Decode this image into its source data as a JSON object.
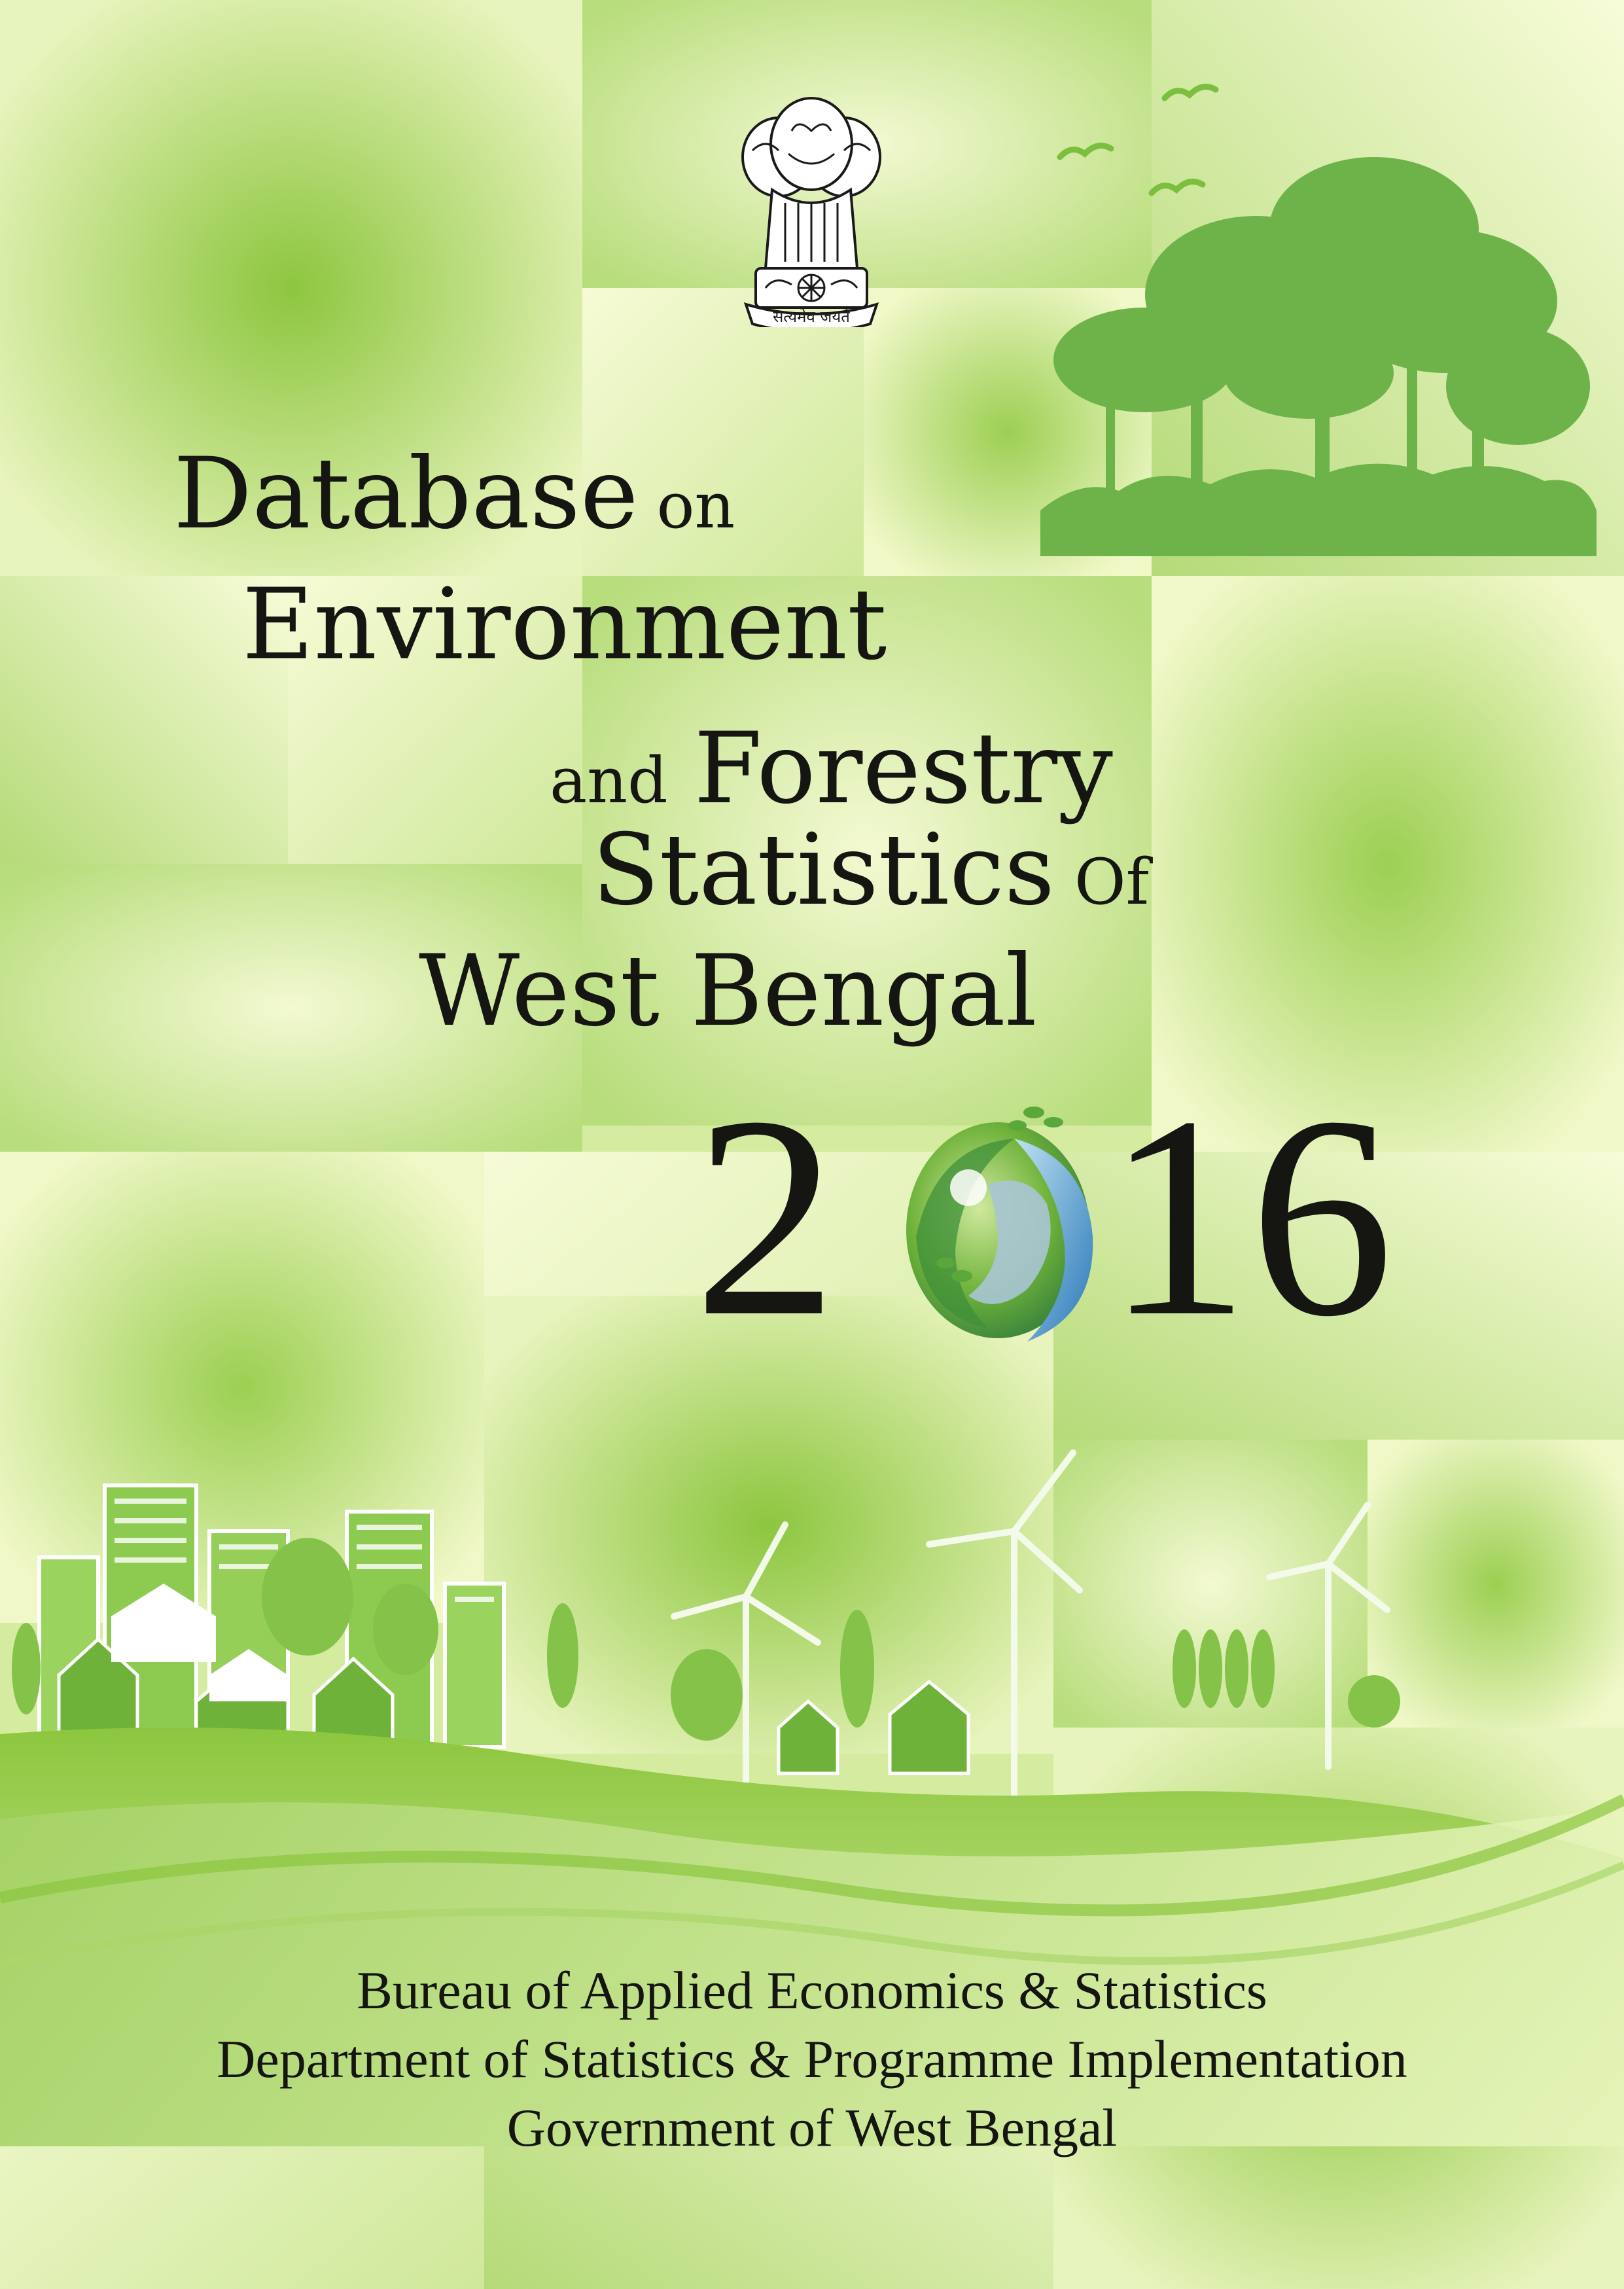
{
  "cover": {
    "title": {
      "line1_main": "Database",
      "line1_small": "on",
      "line2": "Environment",
      "line3_small": "and",
      "line3_main": "Forestry",
      "line4_main": "Statistics",
      "line4_small": "Of",
      "line5": "West Bengal"
    },
    "year": {
      "prefix": "2",
      "suffix": "16"
    },
    "emblem": {
      "motto": "सत्यमेव जयते",
      "icon": "national-emblem-icon"
    },
    "publisher": {
      "line1": "Bureau of Applied Economics & Statistics",
      "line2": "Department of Statistics & Programme Implementation",
      "line3": "Government of West Bengal"
    }
  },
  "colors": {
    "background_light": "#eef7c4",
    "background_mid": "#c9e58f",
    "accent_green": "#6fb23a",
    "tree_green": "#5fae3e",
    "text": "#151512"
  }
}
